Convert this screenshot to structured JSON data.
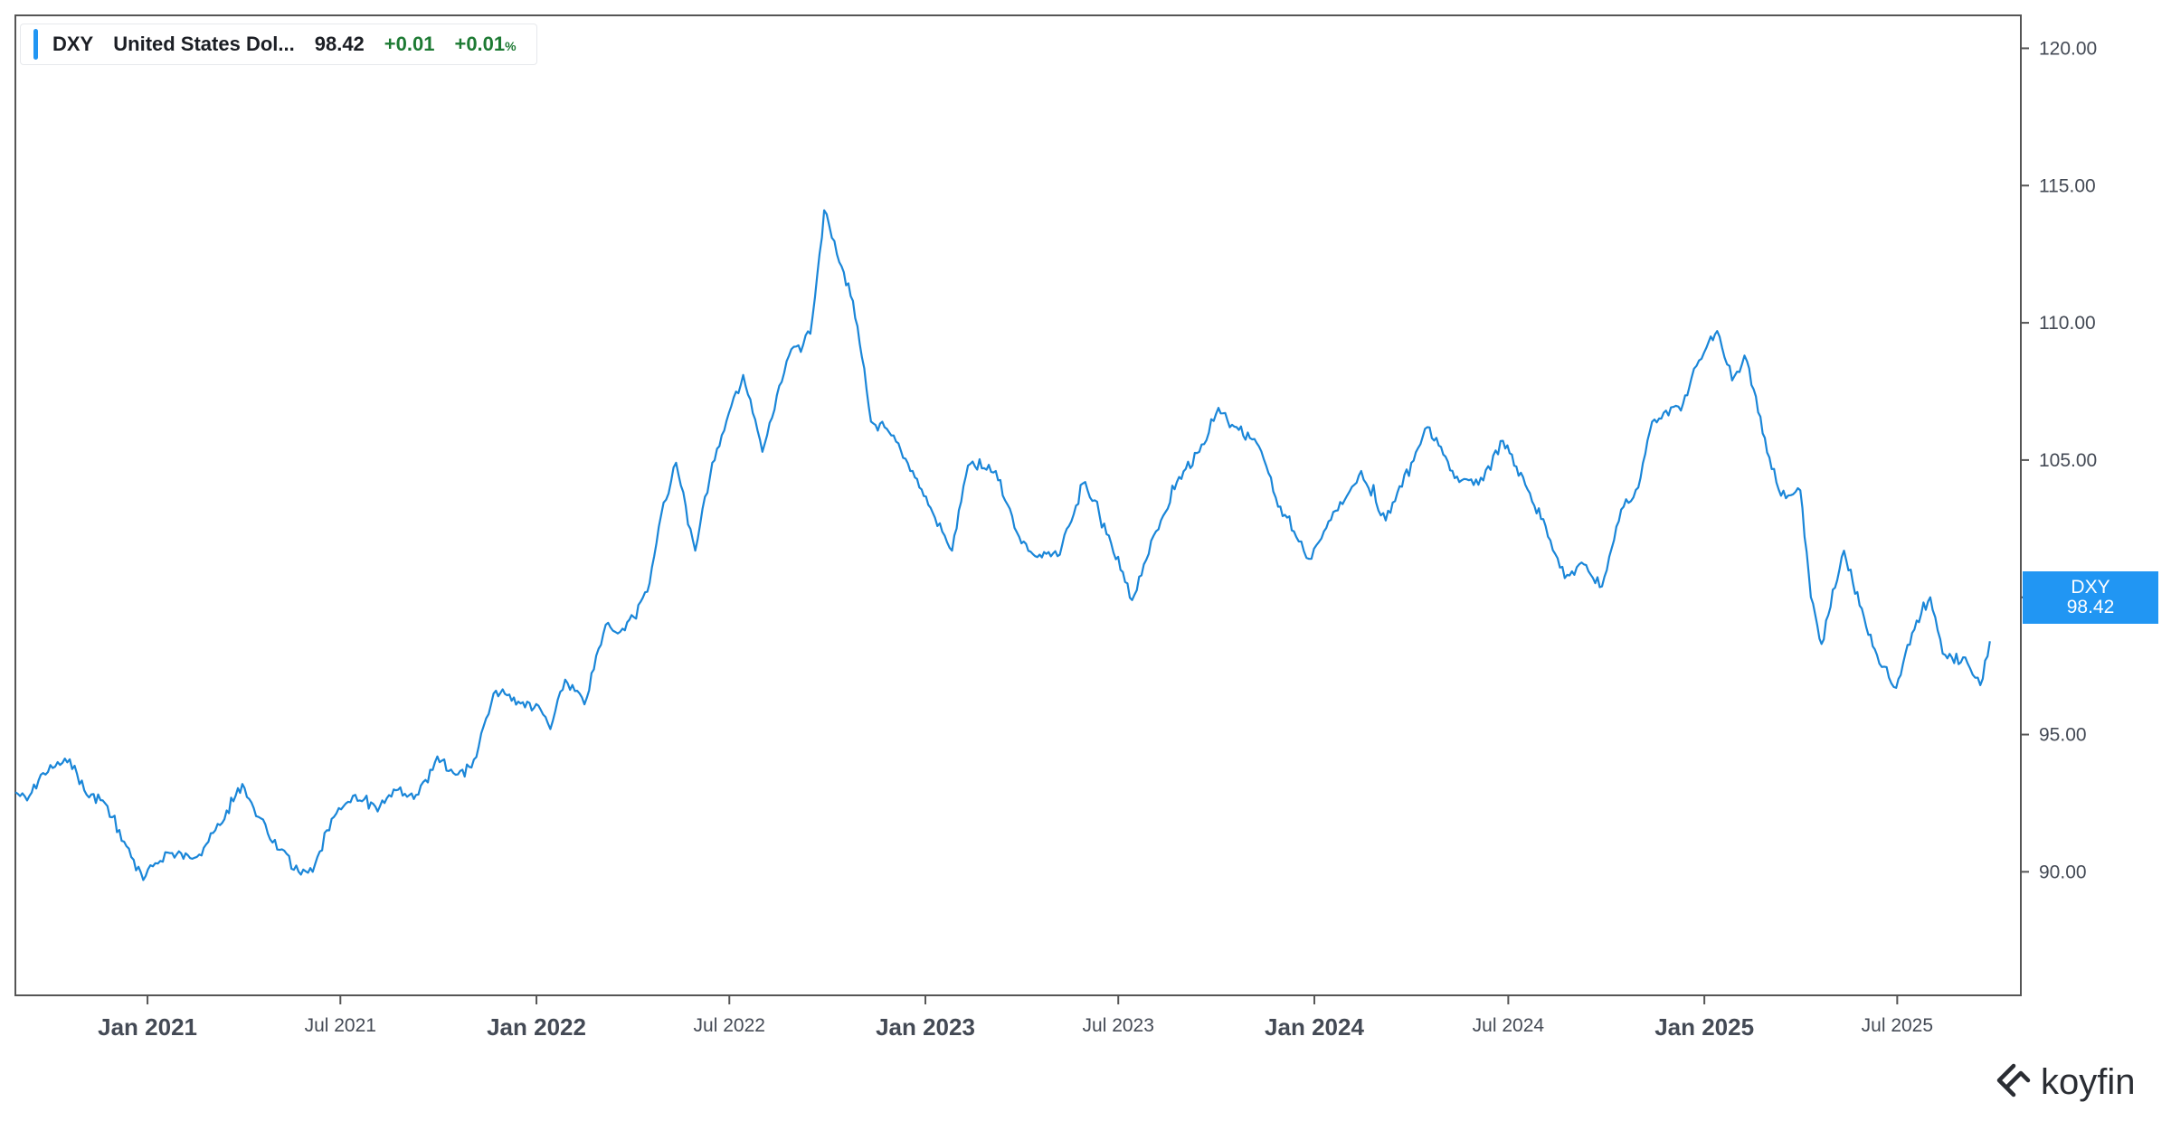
{
  "legend": {
    "symbol": "DXY",
    "name": "United States Dol...",
    "last": "98.42",
    "change": "+0.01",
    "change_pct": "+0.01",
    "pct_sign": "%"
  },
  "price_tag": {
    "symbol": "DXY",
    "value": "98.42"
  },
  "brand": {
    "name": "koyfin",
    "icon": "koyfin-logo-icon"
  },
  "colors": {
    "line": "#1a86d8",
    "tag": "#2196f3",
    "positive": "#1d7a33",
    "axis": "#555555"
  },
  "chart_data": {
    "type": "line",
    "title": "",
    "xlabel": "",
    "ylabel": "",
    "ylim": [
      85.5,
      121.2
    ],
    "xlim": [
      "2020-08-30",
      "2025-10-25"
    ],
    "y_ticks": [
      {
        "value": 90,
        "label": "90.00"
      },
      {
        "value": 95,
        "label": "95.00"
      },
      {
        "value": 100,
        "label": "100.00"
      },
      {
        "value": 105,
        "label": "105.00"
      },
      {
        "value": 110,
        "label": "110.00"
      },
      {
        "value": 115,
        "label": "115.00"
      },
      {
        "value": 120,
        "label": "120.00"
      }
    ],
    "x_ticks": [
      {
        "date": "2021-01-01",
        "label": "Jan 2021",
        "major": true
      },
      {
        "date": "2021-07-01",
        "label": "Jul 2021",
        "major": false
      },
      {
        "date": "2022-01-01",
        "label": "Jan 2022",
        "major": true
      },
      {
        "date": "2022-07-01",
        "label": "Jul 2022",
        "major": false
      },
      {
        "date": "2023-01-01",
        "label": "Jan 2023",
        "major": true
      },
      {
        "date": "2023-07-01",
        "label": "Jul 2023",
        "major": false
      },
      {
        "date": "2024-01-01",
        "label": "Jan 2024",
        "major": true
      },
      {
        "date": "2024-07-01",
        "label": "Jul 2024",
        "major": false
      },
      {
        "date": "2025-01-01",
        "label": "Jan 2025",
        "major": true
      },
      {
        "date": "2025-07-01",
        "label": "Jul 2025",
        "major": false
      }
    ],
    "series": [
      {
        "name": "DXY",
        "x": [
          "2020-08-30",
          "2020-09-10",
          "2020-09-25",
          "2020-10-20",
          "2020-11-05",
          "2020-11-20",
          "2020-12-10",
          "2020-12-28",
          "2021-01-06",
          "2021-01-20",
          "2021-02-10",
          "2021-02-25",
          "2021-03-10",
          "2021-03-31",
          "2021-04-15",
          "2021-05-05",
          "2021-05-25",
          "2021-06-05",
          "2021-06-25",
          "2021-07-15",
          "2021-08-05",
          "2021-08-20",
          "2021-09-10",
          "2021-09-30",
          "2021-10-15",
          "2021-11-01",
          "2021-11-24",
          "2021-12-15",
          "2022-01-05",
          "2022-01-14",
          "2022-01-28",
          "2022-02-15",
          "2022-03-07",
          "2022-03-25",
          "2022-04-15",
          "2022-04-28",
          "2022-05-12",
          "2022-05-30",
          "2022-06-15",
          "2022-07-14",
          "2022-08-01",
          "2022-08-26",
          "2022-09-15",
          "2022-09-28",
          "2022-10-10",
          "2022-10-25",
          "2022-11-11",
          "2022-11-30",
          "2022-12-20",
          "2023-01-10",
          "2023-01-26",
          "2023-02-10",
          "2023-03-08",
          "2023-03-30",
          "2023-04-14",
          "2023-05-05",
          "2023-05-31",
          "2023-06-20",
          "2023-07-14",
          "2023-07-25",
          "2023-08-10",
          "2023-08-25",
          "2023-09-15",
          "2023-10-03",
          "2023-10-20",
          "2023-11-10",
          "2023-11-28",
          "2023-12-15",
          "2023-12-27",
          "2024-01-10",
          "2024-02-14",
          "2024-03-08",
          "2024-04-01",
          "2024-04-16",
          "2024-05-01",
          "2024-05-16",
          "2024-06-03",
          "2024-06-26",
          "2024-07-17",
          "2024-08-05",
          "2024-08-23",
          "2024-09-10",
          "2024-09-27",
          "2024-10-15",
          "2024-10-31",
          "2024-11-13",
          "2024-11-26",
          "2024-12-10",
          "2024-12-20",
          "2025-01-03",
          "2025-01-13",
          "2025-01-27",
          "2025-02-10",
          "2025-03-03",
          "2025-03-14",
          "2025-04-01",
          "2025-04-11",
          "2025-04-21",
          "2025-05-12",
          "2025-06-02",
          "2025-06-12",
          "2025-06-30",
          "2025-07-15",
          "2025-08-01",
          "2025-08-15",
          "2025-09-05",
          "2025-09-17",
          "2025-09-26"
        ],
        "values": [
          92.9,
          92.6,
          93.6,
          94.1,
          92.8,
          92.6,
          91.1,
          89.7,
          90.2,
          90.7,
          90.5,
          91.0,
          91.7,
          93.2,
          92.0,
          90.8,
          89.9,
          90.0,
          92.0,
          92.8,
          92.2,
          93.0,
          92.8,
          94.2,
          93.6,
          93.8,
          96.6,
          96.2,
          95.9,
          95.2,
          97.0,
          96.1,
          99.0,
          98.8,
          100.2,
          103.0,
          104.9,
          101.7,
          104.9,
          108.1,
          105.3,
          108.8,
          109.6,
          114.1,
          112.5,
          110.8,
          106.4,
          105.9,
          104.6,
          102.9,
          101.7,
          104.8,
          104.6,
          102.2,
          101.5,
          101.5,
          104.2,
          102.3,
          99.9,
          101.2,
          102.8,
          104.2,
          105.3,
          106.9,
          106.2,
          105.5,
          103.3,
          102.2,
          101.4,
          102.4,
          104.6,
          102.8,
          104.9,
          106.2,
          105.2,
          104.2,
          104.1,
          105.7,
          104.1,
          102.6,
          100.7,
          101.2,
          100.4,
          103.2,
          104.0,
          106.4,
          106.8,
          106.8,
          108.0,
          109.1,
          109.7,
          107.9,
          108.6,
          105.1,
          103.7,
          103.9,
          100.0,
          98.3,
          101.7,
          98.9,
          97.9,
          96.7,
          98.7,
          100.0,
          97.9,
          97.6,
          96.8,
          98.4
        ]
      }
    ]
  }
}
